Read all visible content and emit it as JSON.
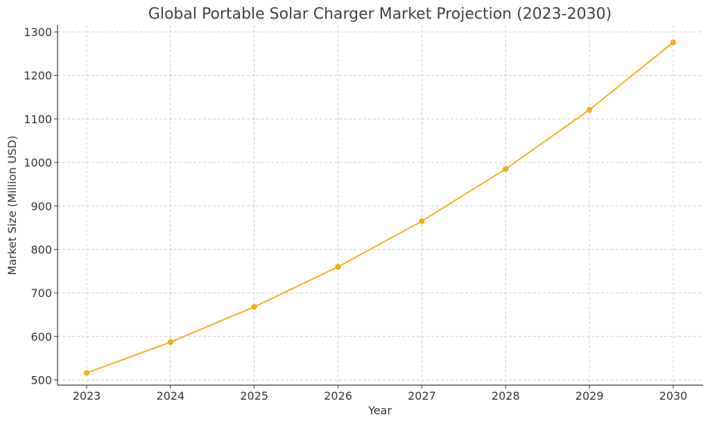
{
  "chart_data": {
    "type": "line",
    "title": "Global Portable Solar Charger Market Projection (2023-2030)",
    "xlabel": "Year",
    "ylabel": "Market Size (Million USD)",
    "x": [
      "2023",
      "2024",
      "2025",
      "2026",
      "2027",
      "2028",
      "2029",
      "2030"
    ],
    "series": [
      {
        "values": [
          516,
          587,
          668,
          760,
          865,
          985,
          1121,
          1276
        ]
      }
    ],
    "yticks": [
      500,
      600,
      700,
      800,
      900,
      1000,
      1100,
      1200,
      1300
    ],
    "ylim": [
      488,
      1316
    ],
    "grid": true,
    "legend": "none",
    "color": "#f2b01e"
  }
}
